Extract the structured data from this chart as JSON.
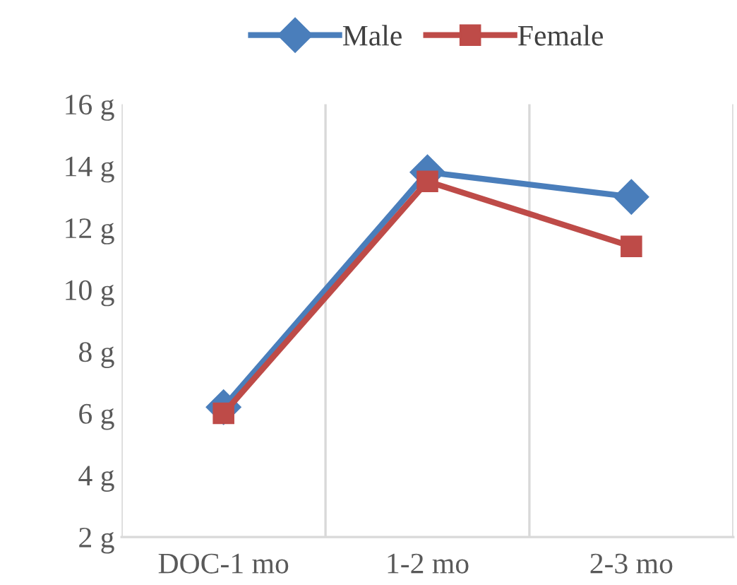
{
  "chart_data": {
    "type": "line",
    "categories": [
      "DOC-1 mo",
      "1-2 mo",
      "2-3 mo"
    ],
    "series": [
      {
        "name": "Male",
        "color": "#4a7ebb",
        "marker": "diamond",
        "values": [
          6.2,
          13.8,
          13.0
        ]
      },
      {
        "name": "Female",
        "color": "#be4b48",
        "marker": "square",
        "values": [
          6.0,
          13.5,
          11.4
        ]
      }
    ],
    "ylim": [
      2,
      16
    ],
    "yticks": [
      {
        "value": 2,
        "label": "2 g"
      },
      {
        "value": 4,
        "label": "4 g"
      },
      {
        "value": 6,
        "label": "6 g"
      },
      {
        "value": 8,
        "label": "8 g"
      },
      {
        "value": 10,
        "label": "10 g"
      },
      {
        "value": 12,
        "label": "12 g"
      },
      {
        "value": 14,
        "label": "14 g"
      },
      {
        "value": 16,
        "label": "16 g"
      }
    ],
    "grid": "x",
    "legend": "top",
    "line_style": "solid"
  }
}
